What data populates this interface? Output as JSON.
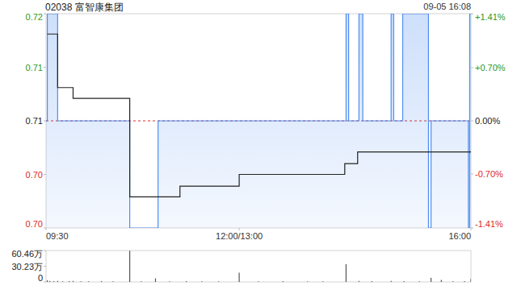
{
  "chart_data": [
    {
      "type": "line",
      "title": "02038 富智康集团",
      "subtitle": "09-05 16:08",
      "xlim": [
        0,
        330
      ],
      "xticks": [
        {
          "value": 0,
          "label": "09:30"
        },
        {
          "value": 150,
          "label": "12:00/13:00"
        },
        {
          "value": 330,
          "label": "16:00"
        }
      ],
      "ylim": [
        0.7,
        0.72
      ],
      "yticks": [
        0.72,
        {
          "value": 0.715,
          "label": "0.71"
        },
        0.71,
        {
          "value": 0.705,
          "label": "0.70"
        },
        {
          "value": 0.7,
          "label": "0.70"
        }
      ],
      "y2lim": [
        -1.41,
        1.41
      ],
      "y2ticks": [
        {
          "value": 1.41,
          "label": "+1.41%"
        },
        {
          "value": 0.7,
          "label": "+0.70%"
        },
        {
          "value": 0,
          "label": "0.00%"
        },
        {
          "value": -0.7,
          "label": "-0.70%"
        },
        {
          "value": -1.41,
          "label": "-1.41%"
        }
      ],
      "reference_line": 0.71,
      "grid": false,
      "tick_labels": true,
      "series": [
        {
          "type": "area",
          "color": "#4f8ef0",
          "line_style": "solid",
          "x": [
            0,
            1,
            1,
            9,
            9,
            65,
            65,
            87,
            87,
            233,
            233,
            235,
            235,
            243,
            243,
            246,
            246,
            268,
            268,
            270,
            270,
            277,
            277,
            297,
            297,
            299,
            299,
            328,
            328,
            329,
            329,
            330
          ],
          "values": [
            0.71,
            0.71,
            0.72,
            0.72,
            0.71,
            0.71,
            0.7,
            0.7,
            0.71,
            0.71,
            0.72,
            0.72,
            0.71,
            0.71,
            0.72,
            0.72,
            0.71,
            0.71,
            0.72,
            0.72,
            0.71,
            0.71,
            0.72,
            0.72,
            0.7,
            0.7,
            0.71,
            0.71,
            0.7,
            0.7,
            0.72,
            0.72
          ]
        },
        {
          "type": "line",
          "color": "#222222",
          "line_style": "solid",
          "x": [
            1,
            9,
            9,
            21,
            21,
            65,
            65,
            104,
            104,
            150,
            150,
            232,
            232,
            242,
            242,
            330
          ],
          "values": [
            0.7181,
            0.7181,
            0.7131,
            0.7131,
            0.7121,
            0.7121,
            0.7029,
            0.7029,
            0.7039,
            0.7039,
            0.705,
            0.705,
            0.706,
            0.706,
            0.7071,
            0.7071
          ]
        }
      ]
    },
    {
      "type": "bar",
      "color": "#555555",
      "xlim": [
        0,
        330
      ],
      "ylim": [
        0,
        60.46
      ],
      "yticks": [
        {
          "value": 60.46,
          "label": "60.46万"
        },
        {
          "value": 30.23,
          "label": "30.23万"
        },
        0
      ],
      "grid": false,
      "tick_labels": "y",
      "x": [
        1,
        3,
        6,
        9,
        13,
        18,
        21,
        27,
        33,
        43,
        52,
        65,
        74,
        85,
        96,
        109,
        121,
        134,
        150,
        165,
        184,
        203,
        215,
        233,
        243,
        253,
        268,
        278,
        290,
        299,
        307,
        316,
        325,
        330
      ],
      "values": [
        3,
        2,
        1.5,
        2,
        1,
        1.5,
        2,
        1,
        1,
        1.5,
        1,
        60.2,
        1,
        7,
        1,
        1.5,
        1,
        1,
        18,
        1,
        1.5,
        1,
        1,
        34,
        2,
        1.5,
        2,
        1.5,
        1,
        8,
        4,
        1,
        1.5,
        6
      ]
    }
  ]
}
